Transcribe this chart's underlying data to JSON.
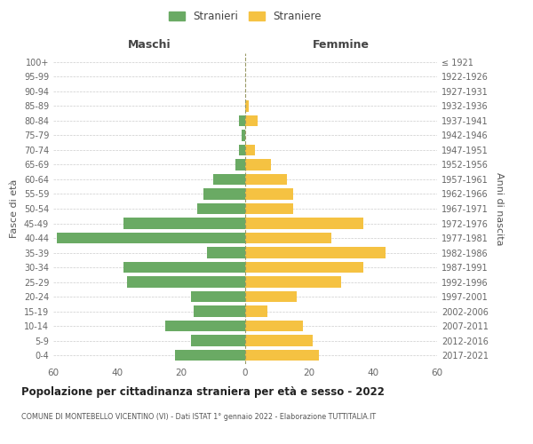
{
  "age_groups": [
    "0-4",
    "5-9",
    "10-14",
    "15-19",
    "20-24",
    "25-29",
    "30-34",
    "35-39",
    "40-44",
    "45-49",
    "50-54",
    "55-59",
    "60-64",
    "65-69",
    "70-74",
    "75-79",
    "80-84",
    "85-89",
    "90-94",
    "95-99",
    "100+"
  ],
  "birth_years": [
    "2017-2021",
    "2012-2016",
    "2007-2011",
    "2002-2006",
    "1997-2001",
    "1992-1996",
    "1987-1991",
    "1982-1986",
    "1977-1981",
    "1972-1976",
    "1967-1971",
    "1962-1966",
    "1957-1961",
    "1952-1956",
    "1947-1951",
    "1942-1946",
    "1937-1941",
    "1932-1936",
    "1927-1931",
    "1922-1926",
    "≤ 1921"
  ],
  "males": [
    22,
    17,
    25,
    16,
    17,
    37,
    38,
    12,
    59,
    38,
    15,
    13,
    10,
    3,
    2,
    1,
    2,
    0,
    0,
    0,
    0
  ],
  "females": [
    23,
    21,
    18,
    7,
    16,
    30,
    37,
    44,
    27,
    37,
    15,
    15,
    13,
    8,
    3,
    0,
    4,
    1,
    0,
    0,
    0
  ],
  "male_color": "#6aaa64",
  "female_color": "#f5c242",
  "male_label": "Stranieri",
  "female_label": "Straniere",
  "title": "Popolazione per cittadinanza straniera per età e sesso - 2022",
  "subtitle": "COMUNE DI MONTEBELLO VICENTINO (VI) - Dati ISTAT 1° gennaio 2022 - Elaborazione TUTTITALIA.IT",
  "xlabel_left": "Maschi",
  "xlabel_right": "Femmine",
  "ylabel_left": "Fasce di età",
  "ylabel_right": "Anni di nascita",
  "xlim": 60,
  "background_color": "#ffffff",
  "grid_color": "#cccccc"
}
